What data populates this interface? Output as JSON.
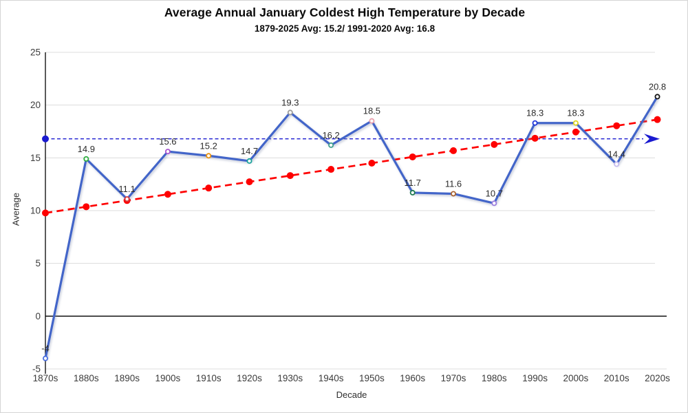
{
  "chart_data": {
    "type": "line",
    "title": "Average Annual January Coldest High Temperature by Decade",
    "subtitle": "1879-2025 Avg: 15.2/ 1991-2020 Avg: 16.8",
    "xlabel": "Decade",
    "ylabel": "Average",
    "ylim": [
      -5,
      25
    ],
    "yticks": [
      25,
      20,
      15,
      10,
      5,
      0,
      -5
    ],
    "grid": true,
    "legend": false,
    "categories": [
      "1870s",
      "1880s",
      "1890s",
      "1900s",
      "1910s",
      "1920s",
      "1930s",
      "1940s",
      "1950s",
      "1960s",
      "1970s",
      "1980s",
      "1990s",
      "2000s",
      "2010s",
      "2020s"
    ],
    "series": [
      {
        "name": "decade-average-temperature",
        "values": [
          -4,
          14.9,
          11.1,
          15.6,
          15.2,
          14.7,
          19.3,
          16.2,
          18.5,
          11.7,
          11.6,
          10.7,
          18.3,
          18.3,
          14.4,
          20.8
        ],
        "point_labels": [
          "-4",
          "14.9",
          "11.1",
          "15.6",
          "15.2",
          "14.7",
          "19.3",
          "16.2",
          "18.5",
          "11.7",
          "11.6",
          "10.7",
          "18.3",
          "18.3",
          "14.4",
          "20.8"
        ],
        "line_color": "#4365c9",
        "marker_colors": [
          "#4a6fe0",
          "#2fae41",
          "#d93a3a",
          "#a855cf",
          "#e8920e",
          "#1aa39b",
          "#9b9b9b",
          "#3f9f8e",
          "#e9a0ad",
          "#1d7a50",
          "#a9622f",
          "#9b7ede",
          "#2036d9",
          "#ddd51c",
          "#c6bbee",
          "#141414"
        ]
      }
    ],
    "trendline": {
      "name": "linear-trendline",
      "style": "dashed",
      "color": "#fe0000",
      "intercept": 9.78,
      "slope": 0.59,
      "start_value": 9.78,
      "end_value": 18.63
    },
    "reference_line": {
      "name": "1991-2020-average",
      "value": 16.8,
      "style": "dashed",
      "color": "#1a1ad0",
      "arrow": true
    },
    "colors": {
      "grid": "#dcdcdc",
      "zero_line": "#000000",
      "axis": "#000000",
      "tick_label": "#3b3b3b",
      "data_label": "#2b2b2b"
    }
  }
}
